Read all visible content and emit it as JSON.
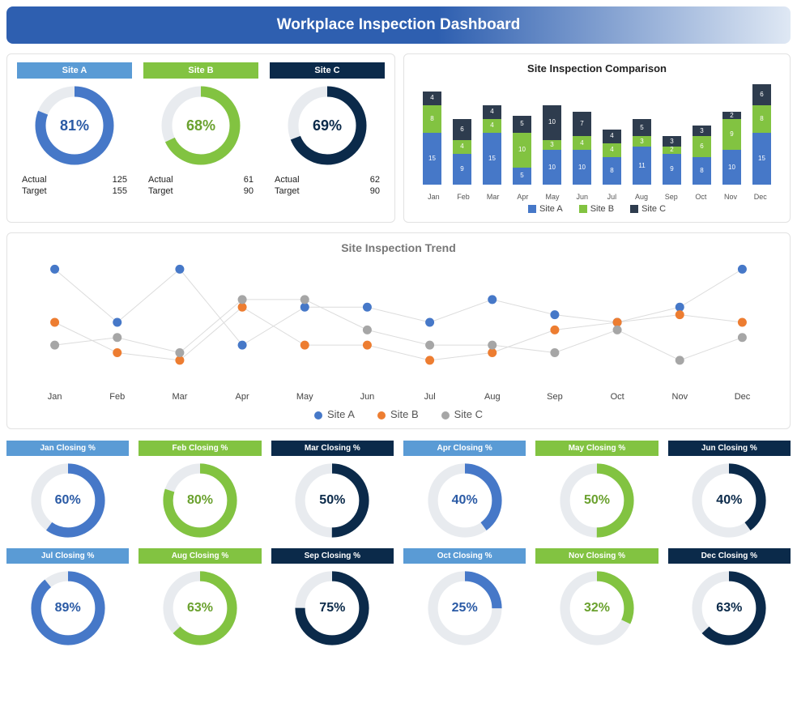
{
  "header": {
    "title": "Workplace Inspection Dashboard",
    "gradient_from": "#2e5fb0",
    "gradient_to": "#dfe8f4"
  },
  "colors": {
    "blue": "#4678c8",
    "blue_light": "#5a9bd5",
    "green": "#82c341",
    "navy": "#0b2a4a",
    "dark": "#2e3c4e",
    "orange": "#ed7d31",
    "grey": "#a6a6a6",
    "track": "#e8ebef",
    "border": "#e2e2e2"
  },
  "sites": [
    {
      "name": "Site A",
      "pct": 81,
      "actual": 125,
      "target": 155,
      "pill_color": "#5a9bd5",
      "ring_color": "#4678c8",
      "text_color": "#2a5aa5"
    },
    {
      "name": "Site B",
      "pct": 68,
      "actual": 61,
      "target": 90,
      "pill_color": "#82c341",
      "ring_color": "#82c341",
      "text_color": "#6aa12e"
    },
    {
      "name": "Site C",
      "pct": 69,
      "actual": 62,
      "target": 90,
      "pill_color": "#0b2a4a",
      "ring_color": "#0b2a4a",
      "text_color": "#0b2a4a"
    }
  ],
  "actual_label": "Actual",
  "target_label": "Target",
  "comparison": {
    "title": "Site Inspection Comparison",
    "months": [
      "Jan",
      "Feb",
      "Mar",
      "Apr",
      "May",
      "Jun",
      "Jul",
      "Aug",
      "Sep",
      "Oct",
      "Nov",
      "Dec"
    ],
    "series": [
      {
        "name": "Site A",
        "color": "#4678c8",
        "values": [
          15,
          9,
          15,
          5,
          10,
          10,
          8,
          11,
          9,
          8,
          10,
          15
        ]
      },
      {
        "name": "Site B",
        "color": "#82c341",
        "values": [
          8,
          4,
          4,
          10,
          3,
          4,
          4,
          3,
          2,
          6,
          9,
          8
        ]
      },
      {
        "name": "Site C",
        "color": "#2e3c4e",
        "values": [
          4,
          6,
          4,
          5,
          10,
          7,
          4,
          5,
          3,
          3,
          2,
          6
        ]
      }
    ],
    "ymax": 30
  },
  "trend": {
    "title": "Site Inspection  Trend",
    "months": [
      "Jan",
      "Feb",
      "Mar",
      "Apr",
      "May",
      "Jun",
      "Jul",
      "Aug",
      "Sep",
      "Oct",
      "Nov",
      "Dec"
    ],
    "ymin": 0,
    "ymax": 16,
    "series": [
      {
        "name": "Site A",
        "color": "#4678c8",
        "values": [
          15,
          8,
          15,
          5,
          10,
          10,
          8,
          11,
          9,
          8,
          10,
          15
        ]
      },
      {
        "name": "Site B",
        "color": "#ed7d31",
        "values": [
          8,
          4,
          3,
          10,
          5,
          5,
          3,
          4,
          7,
          8,
          9,
          8
        ]
      },
      {
        "name": "Site C",
        "color": "#a6a6a6",
        "values": [
          5,
          6,
          4,
          11,
          11,
          7,
          5,
          5,
          4,
          7,
          3,
          6
        ]
      }
    ]
  },
  "closing": [
    {
      "label": "Jan Closing %",
      "pct": 60,
      "pill_color": "#5a9bd5",
      "ring_color": "#4678c8",
      "text_color": "#2a5aa5"
    },
    {
      "label": "Feb Closing %",
      "pct": 80,
      "pill_color": "#82c341",
      "ring_color": "#82c341",
      "text_color": "#6aa12e"
    },
    {
      "label": "Mar Closing %",
      "pct": 50,
      "pill_color": "#0b2a4a",
      "ring_color": "#0b2a4a",
      "text_color": "#0b2a4a"
    },
    {
      "label": "Apr Closing %",
      "pct": 40,
      "pill_color": "#5a9bd5",
      "ring_color": "#4678c8",
      "text_color": "#2a5aa5"
    },
    {
      "label": "May Closing %",
      "pct": 50,
      "pill_color": "#82c341",
      "ring_color": "#82c341",
      "text_color": "#6aa12e"
    },
    {
      "label": "Jun Closing %",
      "pct": 40,
      "pill_color": "#0b2a4a",
      "ring_color": "#0b2a4a",
      "text_color": "#0b2a4a"
    },
    {
      "label": "Jul Closing %",
      "pct": 89,
      "pill_color": "#5a9bd5",
      "ring_color": "#4678c8",
      "text_color": "#2a5aa5"
    },
    {
      "label": "Aug Closing %",
      "pct": 63,
      "pill_color": "#82c341",
      "ring_color": "#82c341",
      "text_color": "#6aa12e"
    },
    {
      "label": "Sep Closing %",
      "pct": 75,
      "pill_color": "#0b2a4a",
      "ring_color": "#0b2a4a",
      "text_color": "#0b2a4a"
    },
    {
      "label": "Oct Closing %",
      "pct": 25,
      "pill_color": "#5a9bd5",
      "ring_color": "#4678c8",
      "text_color": "#2a5aa5"
    },
    {
      "label": "Nov Closing %",
      "pct": 32,
      "pill_color": "#82c341",
      "ring_color": "#82c341",
      "text_color": "#6aa12e"
    },
    {
      "label": "Dec Closing %",
      "pct": 63,
      "pill_color": "#0b2a4a",
      "ring_color": "#0b2a4a",
      "text_color": "#0b2a4a"
    }
  ]
}
